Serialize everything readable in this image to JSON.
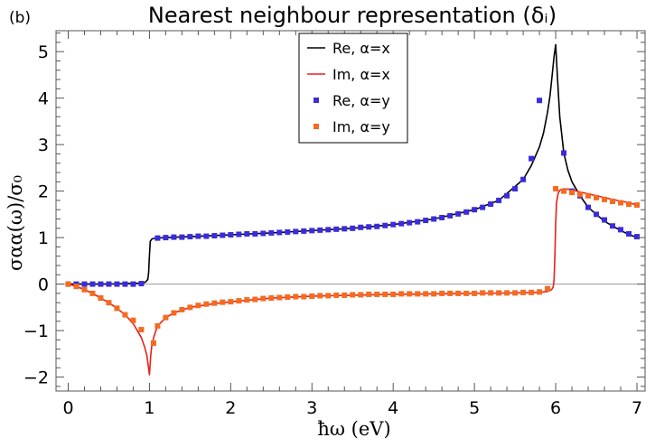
{
  "chart_data": {
    "type": "line",
    "panel_label": "(b)",
    "title": "Nearest neighbour representation (δᵢ)",
    "xlabel": "ħω (eV)",
    "ylabel": "σαα(ω)/σ₀",
    "xlim": [
      -0.15,
      7.1
    ],
    "ylim": [
      -2.3,
      5.45
    ],
    "xticks": [
      0,
      1,
      2,
      3,
      4,
      5,
      6,
      7
    ],
    "yticks": [
      -2,
      -1,
      0,
      1,
      2,
      3,
      4,
      5
    ],
    "ytick_labels": [
      "−2",
      "−1",
      "0",
      "1",
      "2",
      "3",
      "4",
      "5"
    ],
    "x_minor_step": 0.2,
    "y_minor_step": 0.2,
    "grid": false,
    "legend_position": "top-center",
    "series": [
      {
        "name": "Re, α=x",
        "style": "line",
        "color": "#000000",
        "x": [
          0,
          0.5,
          0.9,
          0.95,
          0.98,
          0.99,
          1.0,
          1.01,
          1.03,
          1.05,
          1.1,
          1.2,
          1.5,
          2.0,
          2.5,
          3.0,
          3.5,
          4.0,
          4.5,
          5.0,
          5.3,
          5.6,
          5.7,
          5.8,
          5.85,
          5.9,
          5.93,
          5.96,
          5.98,
          6.0,
          6.02,
          6.05,
          6.1,
          6.15,
          6.2,
          6.3,
          6.4,
          6.5,
          6.6,
          6.7,
          6.8,
          6.9,
          7.0
        ],
        "y": [
          0,
          0,
          0.02,
          0.04,
          0.1,
          0.25,
          0.62,
          0.92,
          0.97,
          0.98,
          0.99,
          1.0,
          1.02,
          1.06,
          1.1,
          1.15,
          1.2,
          1.28,
          1.4,
          1.6,
          1.8,
          2.25,
          2.55,
          2.95,
          3.25,
          3.7,
          4.05,
          4.55,
          4.9,
          5.15,
          4.5,
          3.6,
          2.82,
          2.45,
          2.2,
          1.9,
          1.65,
          1.5,
          1.35,
          1.25,
          1.15,
          1.07,
          1.0
        ]
      },
      {
        "name": "Im, α=x",
        "style": "line",
        "color": "#e8201a",
        "x": [
          0,
          0.1,
          0.2,
          0.3,
          0.4,
          0.5,
          0.6,
          0.7,
          0.8,
          0.85,
          0.9,
          0.94,
          0.97,
          0.985,
          1.0,
          1.015,
          1.03,
          1.06,
          1.1,
          1.2,
          1.3,
          1.5,
          1.8,
          2.0,
          2.5,
          3.0,
          3.5,
          4.0,
          4.5,
          5.0,
          5.5,
          5.8,
          5.9,
          5.95,
          5.97,
          5.98,
          5.99,
          6.0,
          6.01,
          6.03,
          6.05,
          6.1,
          6.2,
          6.3,
          6.5,
          6.7,
          6.9,
          7.0
        ],
        "y": [
          0,
          -0.05,
          -0.12,
          -0.2,
          -0.3,
          -0.4,
          -0.52,
          -0.66,
          -0.85,
          -1.0,
          -1.15,
          -1.35,
          -1.55,
          -1.75,
          -1.95,
          -1.55,
          -1.3,
          -1.1,
          -0.9,
          -0.72,
          -0.62,
          -0.5,
          -0.42,
          -0.38,
          -0.3,
          -0.26,
          -0.24,
          -0.22,
          -0.21,
          -0.2,
          -0.19,
          -0.18,
          -0.16,
          -0.12,
          -0.06,
          0.1,
          0.6,
          1.3,
          1.75,
          1.95,
          2.02,
          2.05,
          2.03,
          1.98,
          1.9,
          1.82,
          1.75,
          1.7
        ]
      },
      {
        "name": "Re, α=y",
        "style": "markers",
        "color": "#3a2bdc",
        "x": [
          0,
          0.1,
          0.2,
          0.3,
          0.4,
          0.5,
          0.6,
          0.7,
          0.8,
          0.9,
          1.1,
          1.2,
          1.3,
          1.4,
          1.5,
          1.6,
          1.7,
          1.8,
          1.9,
          2.0,
          2.1,
          2.2,
          2.3,
          2.4,
          2.5,
          2.6,
          2.7,
          2.8,
          2.9,
          3.0,
          3.1,
          3.2,
          3.3,
          3.4,
          3.5,
          3.6,
          3.7,
          3.8,
          3.9,
          4.0,
          4.1,
          4.2,
          4.3,
          4.4,
          4.5,
          4.6,
          4.7,
          4.8,
          4.9,
          5.0,
          5.1,
          5.2,
          5.3,
          5.4,
          5.5,
          5.6,
          5.7,
          5.8,
          6.1,
          6.2,
          6.3,
          6.4,
          6.5,
          6.6,
          6.7,
          6.8,
          6.9,
          7.0
        ],
        "y": [
          0,
          0,
          0,
          0,
          0,
          0,
          0,
          0,
          0,
          0.01,
          0.99,
          1.0,
          1.01,
          1.01,
          1.02,
          1.03,
          1.03,
          1.04,
          1.05,
          1.06,
          1.07,
          1.08,
          1.08,
          1.09,
          1.1,
          1.11,
          1.12,
          1.13,
          1.14,
          1.15,
          1.16,
          1.17,
          1.18,
          1.19,
          1.2,
          1.22,
          1.23,
          1.24,
          1.26,
          1.28,
          1.3,
          1.32,
          1.34,
          1.37,
          1.4,
          1.43,
          1.47,
          1.51,
          1.55,
          1.6,
          1.65,
          1.72,
          1.8,
          1.9,
          2.05,
          2.25,
          2.7,
          3.95,
          2.82,
          2.0,
          1.9,
          1.65,
          1.5,
          1.38,
          1.25,
          1.17,
          1.08,
          1.02
        ]
      },
      {
        "name": "Im, α=y",
        "style": "markers",
        "color": "#f46a1f",
        "x": [
          0,
          0.1,
          0.2,
          0.3,
          0.4,
          0.5,
          0.6,
          0.7,
          0.8,
          0.9,
          1.05,
          1.1,
          1.2,
          1.3,
          1.4,
          1.5,
          1.6,
          1.7,
          1.8,
          1.9,
          2.0,
          2.1,
          2.2,
          2.3,
          2.4,
          2.5,
          2.6,
          2.7,
          2.8,
          2.9,
          3.0,
          3.1,
          3.2,
          3.3,
          3.4,
          3.5,
          3.6,
          3.7,
          3.8,
          3.9,
          4.0,
          4.1,
          4.2,
          4.3,
          4.4,
          4.5,
          4.6,
          4.7,
          4.8,
          4.9,
          5.0,
          5.1,
          5.2,
          5.3,
          5.4,
          5.5,
          5.6,
          5.7,
          5.8,
          5.9,
          6.0,
          6.1,
          6.2,
          6.3,
          6.4,
          6.5,
          6.6,
          6.7,
          6.8,
          6.9,
          7.0
        ],
        "y": [
          0,
          -0.05,
          -0.12,
          -0.2,
          -0.3,
          -0.4,
          -0.52,
          -0.66,
          -0.78,
          -0.98,
          -1.27,
          -0.9,
          -0.72,
          -0.62,
          -0.55,
          -0.5,
          -0.46,
          -0.43,
          -0.41,
          -0.39,
          -0.38,
          -0.36,
          -0.34,
          -0.33,
          -0.31,
          -0.3,
          -0.29,
          -0.28,
          -0.27,
          -0.27,
          -0.26,
          -0.25,
          -0.25,
          -0.24,
          -0.24,
          -0.23,
          -0.23,
          -0.22,
          -0.22,
          -0.22,
          -0.22,
          -0.21,
          -0.21,
          -0.21,
          -0.21,
          -0.21,
          -0.2,
          -0.2,
          -0.2,
          -0.2,
          -0.2,
          -0.19,
          -0.19,
          -0.19,
          -0.19,
          -0.19,
          -0.18,
          -0.18,
          -0.17,
          -0.1,
          2.05,
          2.0,
          1.97,
          1.93,
          1.9,
          1.86,
          1.82,
          1.78,
          1.75,
          1.72,
          1.7
        ]
      }
    ]
  }
}
